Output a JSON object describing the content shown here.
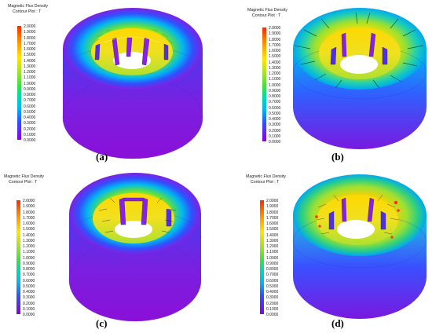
{
  "legend": {
    "title": "Magnetic Flux Density",
    "subtitle": "Contour Plot : T",
    "ticks": [
      "2.0000",
      "1.9000",
      "1.8000",
      "1.7000",
      "1.6000",
      "1.5000",
      "1.4000",
      "1.3000",
      "1.2000",
      "1.1000",
      "1.0000",
      "0.9000",
      "0.8000",
      "0.7000",
      "0.6000",
      "0.5000",
      "0.4000",
      "0.3000",
      "0.2000",
      "0.1000",
      "0.0000"
    ],
    "colors": {
      "max": "#ff2a00",
      "high": "#ffe600",
      "mid": "#40e040",
      "low_mid": "#00c8e8",
      "low": "#3050ff",
      "min": "#8a00e0"
    }
  },
  "panels": [
    {
      "id": "a",
      "caption": "(a)"
    },
    {
      "id": "b",
      "caption": "(b)"
    },
    {
      "id": "c",
      "caption": "(c)"
    },
    {
      "id": "d",
      "caption": "(d)"
    }
  ]
}
